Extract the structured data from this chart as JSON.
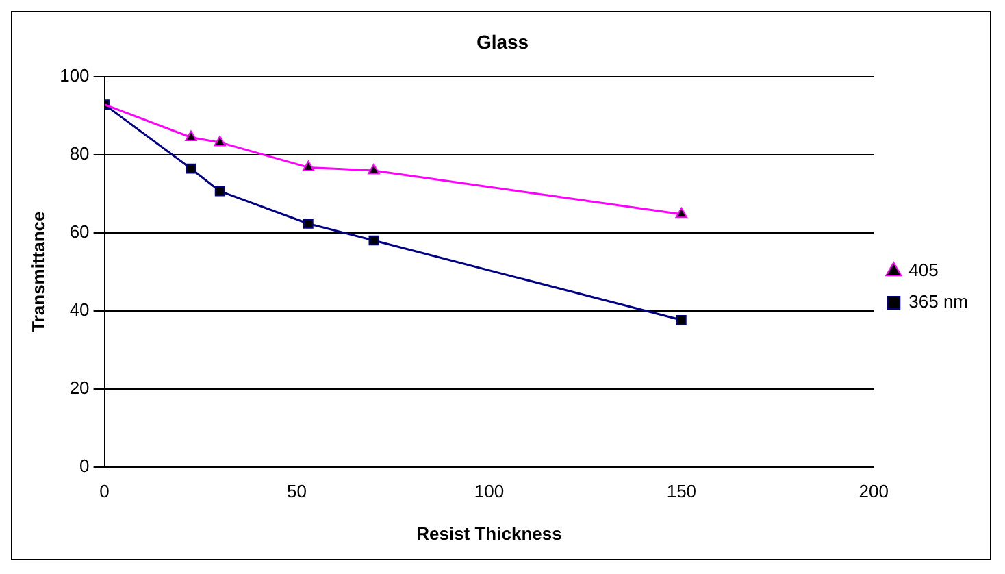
{
  "chart_data": {
    "type": "line",
    "title": "Glass",
    "xlabel": "Resist Thickness",
    "ylabel": "Transmittance",
    "xlim": [
      0,
      200
    ],
    "xticks": [
      0,
      50,
      100,
      150,
      200
    ],
    "ylim": [
      0,
      100
    ],
    "yticks": [
      0,
      20,
      40,
      60,
      80,
      100
    ],
    "grid": "y",
    "legend": "right",
    "series": [
      {
        "name": "405",
        "color": "#ff00ff",
        "marker": "triangle",
        "x": [
          0,
          22.5,
          30,
          53,
          70,
          150
        ],
        "values": [
          92.8,
          84.4,
          83.1,
          76.7,
          75.9,
          64.7
        ]
      },
      {
        "name": "365 nm",
        "color": "#000080",
        "marker": "square",
        "x": [
          0,
          22.5,
          30,
          53,
          70,
          150
        ],
        "values": [
          92.8,
          76.4,
          70.6,
          62.3,
          58.0,
          37.6
        ]
      }
    ]
  }
}
